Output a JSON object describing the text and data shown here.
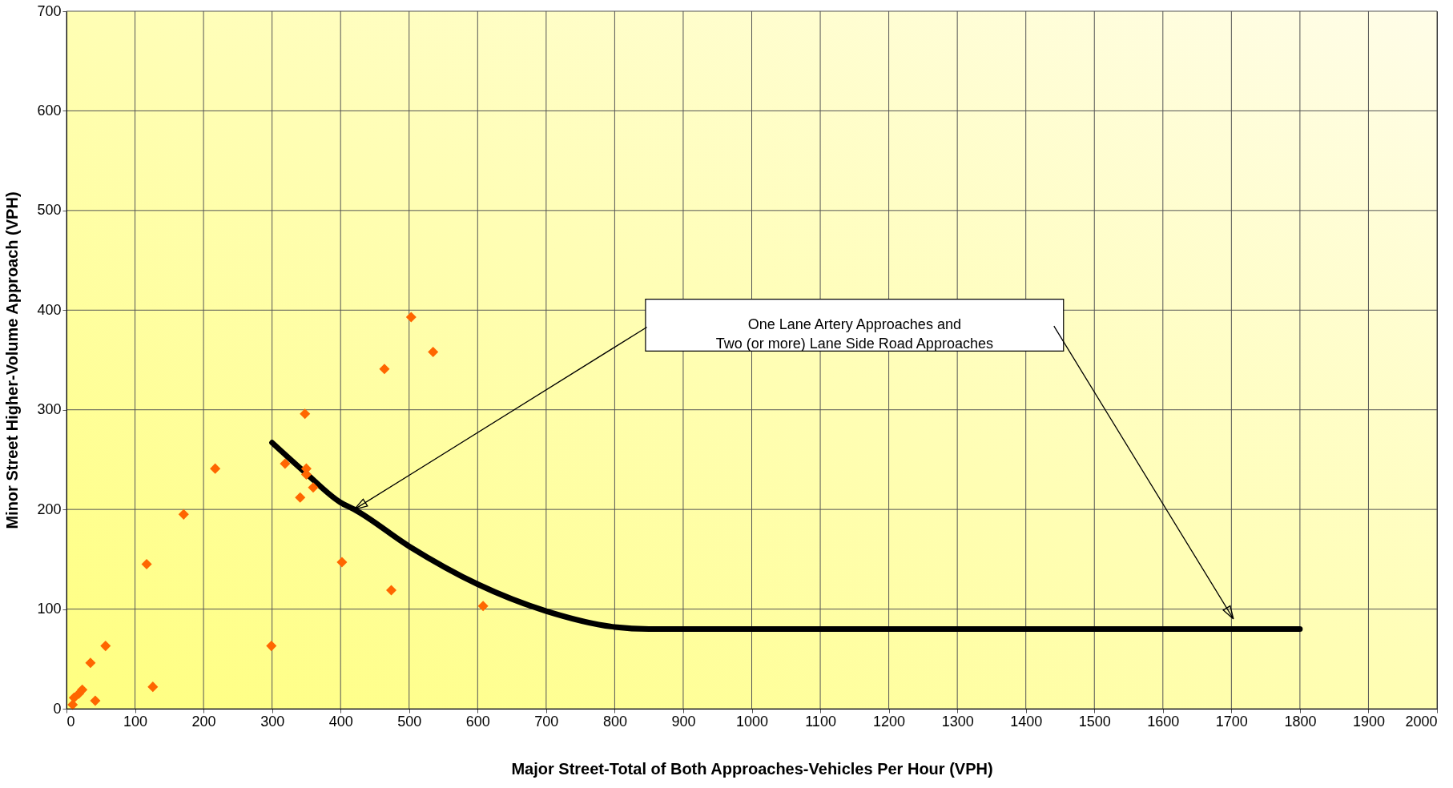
{
  "chart_data": {
    "type": "scatter",
    "xlabel": "Major Street-Total of Both Approaches-Vehicles Per Hour (VPH)",
    "ylabel": "Minor Street Higher-Volume Approach (VPH)",
    "xlim": [
      0,
      2000
    ],
    "xticks": [
      0,
      100,
      200,
      300,
      400,
      500,
      600,
      700,
      800,
      900,
      1000,
      1100,
      1200,
      1300,
      1400,
      1500,
      1600,
      1700,
      1800,
      1900,
      2000
    ],
    "ylim": [
      0,
      700
    ],
    "yticks": [
      0,
      100,
      200,
      300,
      400,
      500,
      600,
      700
    ],
    "grid": true,
    "series": [
      {
        "color": "#ff6600",
        "marker": "diamond",
        "x": [
          9,
          11,
          18,
          23,
          35,
          42,
          57,
          126,
          117,
          171,
          217,
          299,
          348,
          319,
          350,
          350,
          360,
          341,
          503,
          535,
          464,
          402,
          474,
          608
        ],
        "values": [
          4,
          11,
          15,
          19,
          46,
          8,
          63,
          22,
          145,
          195,
          241,
          63,
          296,
          246,
          241,
          235,
          222,
          212,
          393,
          358,
          341,
          147,
          119,
          103
        ]
      },
      {
        "type": "line",
        "color": "#000000",
        "marker": "none",
        "line_style": "solid",
        "x": [
          300,
          350,
          400,
          420,
          500,
          600,
          700,
          800,
          850,
          1800
        ],
        "values": [
          267,
          236,
          207,
          200,
          163,
          125,
          98,
          82,
          80,
          80
        ]
      }
    ],
    "annotations": [
      "One Lane Artery Approaches and\nTwo (or more) Lane Side Road Approaches"
    ]
  }
}
